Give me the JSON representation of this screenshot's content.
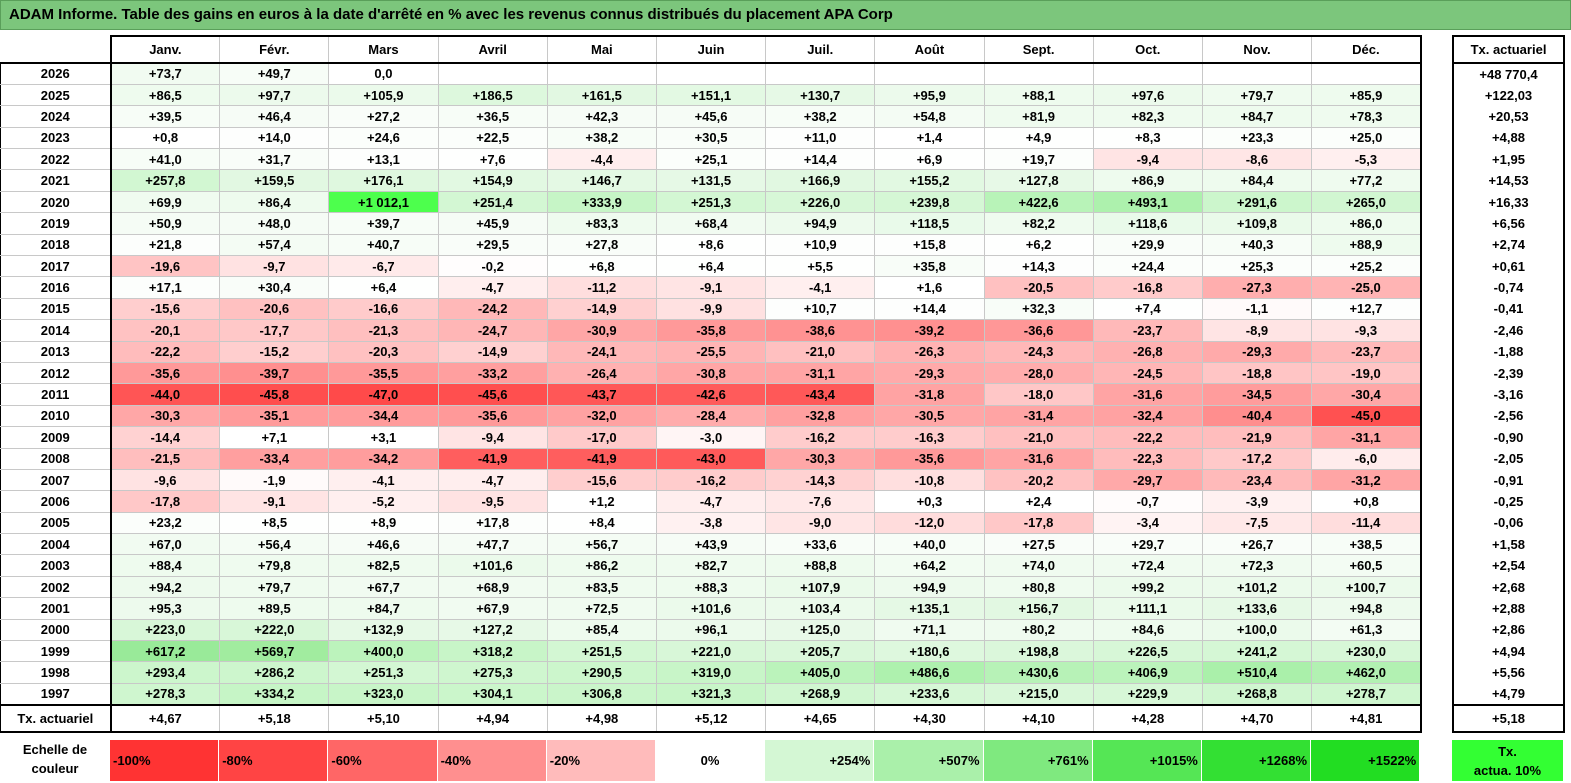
{
  "title": "ADAM Informe. Table des gains en euros à la date d'arrêté en % avec les revenus connus distribués du placement APA Corp",
  "months": [
    "Janv.",
    "Févr.",
    "Mars",
    "Avril",
    "Mai",
    "Juin",
    "Juil.",
    "Août",
    "Sept.",
    "Oct.",
    "Nov.",
    "Déc."
  ],
  "tx_header": "Tx. actuariel",
  "rows": [
    {
      "year": "2026",
      "values": [
        "+73,7",
        "+49,7",
        "0,0",
        "",
        "",
        "",
        "",
        "",
        "",
        "",
        "",
        ""
      ],
      "bg": [
        "#f1fbf1",
        "#f7fdf7",
        "#ffffff",
        "",
        "",
        "",
        "",
        "",
        "",
        "",
        "",
        ""
      ],
      "tx": "+48 770,4"
    },
    {
      "year": "2025",
      "values": [
        "+86,5",
        "+97,7",
        "+105,9",
        "+186,5",
        "+161,5",
        "+151,1",
        "+130,7",
        "+95,9",
        "+88,1",
        "+97,6",
        "+79,7",
        "+85,9"
      ],
      "bg": [
        "#eefbee",
        "#ecfaec",
        "#ebfaeb",
        "#ddf8dd",
        "#e2f8e2",
        "#e3f9e3",
        "#e6f9e6",
        "#ecfaec",
        "#eefbee",
        "#ecfaec",
        "#effbef",
        "#eefbee"
      ],
      "tx": "+122,03"
    },
    {
      "year": "2024",
      "values": [
        "+39,5",
        "+46,4",
        "+27,2",
        "+36,5",
        "+42,3",
        "+45,6",
        "+38,2",
        "+54,8",
        "+81,9",
        "+82,3",
        "+84,7",
        "+78,3"
      ],
      "bg": [
        "#f7fdf7",
        "#f6fcf6",
        "#f9fdf9",
        "#f7fdf7",
        "#f6fcf6",
        "#f6fcf6",
        "#f7fdf7",
        "#f4fcf4",
        "#effbef",
        "#effbef",
        "#eefbee",
        "#effbef"
      ],
      "tx": "+20,53"
    },
    {
      "year": "2023",
      "values": [
        "+0,8",
        "+14,0",
        "+24,6",
        "+22,5",
        "+38,2",
        "+30,5",
        "+11,0",
        "+1,4",
        "+4,9",
        "+8,3",
        "+23,3",
        "+25,0"
      ],
      "bg": [
        "#ffffff",
        "#fdfefd",
        "#fbfefb",
        "#fbfefb",
        "#f7fdf7",
        "#f9fdf9",
        "#fdfefd",
        "#ffffff",
        "#fefffe",
        "#fefffe",
        "#fbfefb",
        "#fbfefb"
      ],
      "tx": "+4,88"
    },
    {
      "year": "2022",
      "values": [
        "+41,0",
        "+31,7",
        "+13,1",
        "+7,6",
        "-4,4",
        "+25,1",
        "+14,4",
        "+6,9",
        "+19,7",
        "-9,4",
        "-8,6",
        "-5,3"
      ],
      "bg": [
        "#f7fdf7",
        "#f9fdf9",
        "#fdfefd",
        "#fefffe",
        "#ffeeee",
        "#fbfefb",
        "#fdfefd",
        "#fefffe",
        "#fcfefc",
        "#ffe4e4",
        "#ffe6e6",
        "#ffefef"
      ],
      "tx": "+1,95"
    },
    {
      "year": "2021",
      "values": [
        "+257,8",
        "+159,5",
        "+176,1",
        "+154,9",
        "+146,7",
        "+131,5",
        "+166,9",
        "+155,2",
        "+127,8",
        "+86,9",
        "+84,4",
        "+77,2"
      ],
      "bg": [
        "#d2f7d2",
        "#e2f8e2",
        "#dff8df",
        "#e2f9e2",
        "#e4f9e4",
        "#e6f9e6",
        "#e1f8e1",
        "#e2f9e2",
        "#e7f9e7",
        "#eefbee",
        "#eefbee",
        "#effbef"
      ],
      "tx": "+14,53"
    },
    {
      "year": "2020",
      "values": [
        "+69,9",
        "+86,4",
        "+1 012,1",
        "+251,4",
        "+333,9",
        "+251,3",
        "+226,0",
        "+239,8",
        "+422,6",
        "+493,1",
        "+291,6",
        "+265,0"
      ],
      "bg": [
        "#f0fbf0",
        "#eefbee",
        "#4dff4d",
        "#d3f7d3",
        "#c6f5c6",
        "#d3f7d3",
        "#d7f7d7",
        "#d5f7d5",
        "#b8f3b8",
        "#adf1ad",
        "#ccf6cc",
        "#d1f6d1"
      ],
      "tx": "+16,33"
    },
    {
      "year": "2019",
      "values": [
        "+50,9",
        "+48,0",
        "+39,7",
        "+45,9",
        "+83,3",
        "+68,4",
        "+94,9",
        "+118,5",
        "+82,2",
        "+118,6",
        "+109,8",
        "+86,0"
      ],
      "bg": [
        "#f5fcf5",
        "#f5fcf5",
        "#f7fdf7",
        "#f6fcf6",
        "#effbef",
        "#f1fbf1",
        "#edfaed",
        "#e9faea",
        "#effbef",
        "#e9faea",
        "#eafaea",
        "#eefbee"
      ],
      "tx": "+6,56"
    },
    {
      "year": "2018",
      "values": [
        "+21,8",
        "+57,4",
        "+40,7",
        "+29,5",
        "+27,8",
        "+8,6",
        "+10,9",
        "+15,8",
        "+6,2",
        "+29,9",
        "+40,3",
        "+88,9"
      ],
      "bg": [
        "#fcfefc",
        "#f4fcf4",
        "#f7fdf7",
        "#f9fdf9",
        "#f9fdf9",
        "#fefffe",
        "#fdfefd",
        "#fdfefd",
        "#fefffe",
        "#f9fdf9",
        "#f7fdf7",
        "#eefbee"
      ],
      "tx": "+2,74"
    },
    {
      "year": "2017",
      "values": [
        "-19,6",
        "-9,7",
        "-6,7",
        "-0,2",
        "+6,8",
        "+6,4",
        "+5,5",
        "+35,8",
        "+14,3",
        "+24,4",
        "+25,3",
        "+25,2"
      ],
      "bg": [
        "#ffc4c4",
        "#ffe2e2",
        "#ffeaea",
        "#fffdfd",
        "#fefffe",
        "#fefffe",
        "#fefffe",
        "#f8fdf8",
        "#fdfefd",
        "#fbfefb",
        "#fbfefb",
        "#fbfefb"
      ],
      "tx": "+0,61"
    },
    {
      "year": "2016",
      "values": [
        "+17,1",
        "+30,4",
        "+6,4",
        "-4,7",
        "-11,2",
        "-9,1",
        "-4,1",
        "+1,6",
        "-20,5",
        "-16,8",
        "-27,3",
        "-25,0"
      ],
      "bg": [
        "#fcfefc",
        "#f9fdf9",
        "#fefffe",
        "#ffeeee",
        "#ffdede",
        "#ffe4e4",
        "#ffefef",
        "#ffffff",
        "#ffc1c1",
        "#ffcbcb",
        "#ffaeae",
        "#ffb4b4"
      ],
      "tx": "-0,74"
    },
    {
      "year": "2015",
      "values": [
        "-15,6",
        "-20,6",
        "-16,6",
        "-24,2",
        "-14,9",
        "-9,9",
        "+10,7",
        "+14,4",
        "+32,3",
        "+7,4",
        "-1,1",
        "+12,7"
      ],
      "bg": [
        "#ffcece",
        "#ffc1c1",
        "#ffcbcb",
        "#ffb8b8",
        "#ffd0d0",
        "#ffe1e1",
        "#fdfefd",
        "#fdfefd",
        "#f8fdf8",
        "#fefffe",
        "#fffafa",
        "#fdfefd"
      ],
      "tx": "-0,41"
    },
    {
      "year": "2014",
      "values": [
        "-20,1",
        "-17,7",
        "-21,3",
        "-24,7",
        "-30,9",
        "-35,8",
        "-38,6",
        "-39,2",
        "-36,6",
        "-23,7",
        "-8,9",
        "-9,3"
      ],
      "bg": [
        "#ffc2c2",
        "#ffc8c8",
        "#ffbfbf",
        "#ffb6b6",
        "#ffa6a6",
        "#ff9999",
        "#ff9292",
        "#ff9090",
        "#ff9797",
        "#ffb9b9",
        "#ffe4e4",
        "#ffe3e3"
      ],
      "tx": "-2,46"
    },
    {
      "year": "2013",
      "values": [
        "-22,2",
        "-15,2",
        "-20,3",
        "-14,9",
        "-24,1",
        "-25,5",
        "-21,0",
        "-26,3",
        "-24,3",
        "-26,8",
        "-29,3",
        "-23,7"
      ],
      "bg": [
        "#ffbcbc",
        "#ffcece",
        "#ffc1c1",
        "#ffd0d0",
        "#ffb8b8",
        "#ffb4b4",
        "#ffc0c0",
        "#ffb2b2",
        "#ffb8b8",
        "#ffb1b1",
        "#ffaaaa",
        "#ffb9b9"
      ],
      "tx": "-1,88"
    },
    {
      "year": "2012",
      "values": [
        "-35,6",
        "-39,7",
        "-35,5",
        "-33,2",
        "-26,4",
        "-30,8",
        "-31,1",
        "-29,3",
        "-28,0",
        "-24,5",
        "-18,8",
        "-19,0"
      ],
      "bg": [
        "#ff9999",
        "#ff8f8f",
        "#ff9999",
        "#ff9f9f",
        "#ffb1b1",
        "#ffa6a6",
        "#ffa5a5",
        "#ffaaaa",
        "#ffadad",
        "#ffb6b6",
        "#ffc5c5",
        "#ffc5c5"
      ],
      "tx": "-2,39"
    },
    {
      "year": "2011",
      "values": [
        "-44,0",
        "-45,8",
        "-47,0",
        "-45,6",
        "-43,7",
        "-42,6",
        "-43,4",
        "-31,8",
        "-18,0",
        "-31,6",
        "-34,5",
        "-30,4"
      ],
      "bg": [
        "#ff5555",
        "#ff4e4e",
        "#ff4a4a",
        "#ff4f4f",
        "#ff5757",
        "#ff5b5b",
        "#ff5858",
        "#ffa3a3",
        "#ffc7c7",
        "#ffa4a4",
        "#ff9c9c",
        "#ffa7a7"
      ],
      "tx": "-3,16"
    },
    {
      "year": "2010",
      "values": [
        "-30,3",
        "-35,1",
        "-34,4",
        "-35,6",
        "-32,0",
        "-28,4",
        "-32,8",
        "-30,5",
        "-31,4",
        "-32,4",
        "-40,4",
        "-45,0"
      ],
      "bg": [
        "#ffa7a7",
        "#ff9b9b",
        "#ff9c9c",
        "#ff9999",
        "#ffa2a2",
        "#ffacac",
        "#ffa0a0",
        "#ffa7a7",
        "#ffa4a4",
        "#ffa2a2",
        "#ff8e8e",
        "#ff5151"
      ],
      "tx": "-2,56"
    },
    {
      "year": "2009",
      "values": [
        "-14,4",
        "+7,1",
        "+3,1",
        "-9,4",
        "-17,0",
        "-3,0",
        "-16,2",
        "-16,3",
        "-21,0",
        "-22,2",
        "-21,9",
        "-31,1"
      ],
      "bg": [
        "#ffd2d2",
        "#ffffff",
        "#ffffff",
        "#ffe4e4",
        "#ffcaca",
        "#fff5f5",
        "#ffcccc",
        "#ffcccc",
        "#ffc0c0",
        "#ffbcbc",
        "#ffbdbd",
        "#ffa5a5"
      ],
      "tx": "-0,90"
    },
    {
      "year": "2008",
      "values": [
        "-21,5",
        "-33,4",
        "-34,2",
        "-41,9",
        "-41,9",
        "-43,0",
        "-30,3",
        "-35,6",
        "-31,6",
        "-22,3",
        "-17,2",
        "-6,0"
      ],
      "bg": [
        "#ffbebe",
        "#ff9f9f",
        "#ff9d9d",
        "#ff5e5e",
        "#ff5e5e",
        "#ff5a5a",
        "#ffa7a7",
        "#ff9999",
        "#ffa4a4",
        "#ffbcbc",
        "#ffc9c9",
        "#ffecec"
      ],
      "tx": "-2,05"
    },
    {
      "year": "2007",
      "values": [
        "-9,6",
        "-1,9",
        "-4,1",
        "-4,7",
        "-15,6",
        "-16,2",
        "-14,3",
        "-10,8",
        "-20,2",
        "-29,7",
        "-23,4",
        "-31,2"
      ],
      "bg": [
        "#ffe3e3",
        "#fffafa",
        "#ffefef",
        "#ffeeee",
        "#ffcece",
        "#ffcccc",
        "#ffd2d2",
        "#ffdfdf",
        "#ffc2c2",
        "#ffa9a9",
        "#ffbaba",
        "#ffa5a5"
      ],
      "tx": "-0,91"
    },
    {
      "year": "2006",
      "values": [
        "-17,8",
        "-9,1",
        "-5,2",
        "-9,5",
        "+1,2",
        "-4,7",
        "-7,6",
        "+0,3",
        "+2,4",
        "-0,7",
        "-3,9",
        "+0,8"
      ],
      "bg": [
        "#ffc8c8",
        "#ffe4e4",
        "#ffefef",
        "#ffe3e3",
        "#ffffff",
        "#ffeeee",
        "#ffe8e8",
        "#ffffff",
        "#ffffff",
        "#fffcfc",
        "#fff1f1",
        "#ffffff"
      ],
      "tx": "-0,25"
    },
    {
      "year": "2005",
      "values": [
        "+23,2",
        "+8,5",
        "+8,9",
        "+17,8",
        "+8,4",
        "-3,8",
        "-9,0",
        "-12,0",
        "-17,8",
        "-3,4",
        "-7,5",
        "-11,4"
      ],
      "bg": [
        "#fbfefb",
        "#fefffe",
        "#fefffe",
        "#fcfefc",
        "#fefffe",
        "#fff1f1",
        "#ffe5e5",
        "#ffdcdc",
        "#ffc8c8",
        "#fff3f3",
        "#ffe8e8",
        "#ffdddd"
      ],
      "tx": "-0,06"
    },
    {
      "year": "2004",
      "values": [
        "+67,0",
        "+56,4",
        "+46,6",
        "+47,7",
        "+56,7",
        "+43,9",
        "+33,6",
        "+40,0",
        "+27,5",
        "+29,7",
        "+26,7",
        "+38,5"
      ],
      "bg": [
        "#f1fbf1",
        "#f4fcf4",
        "#f6fcf6",
        "#f5fcf5",
        "#f4fcf4",
        "#f6fcf6",
        "#f8fdf8",
        "#f7fdf7",
        "#f9fdf9",
        "#f9fdf9",
        "#f9fdf9",
        "#f7fdf7"
      ],
      "tx": "+1,58"
    },
    {
      "year": "2003",
      "values": [
        "+88,4",
        "+79,8",
        "+82,5",
        "+101,6",
        "+86,2",
        "+82,7",
        "+88,8",
        "+64,2",
        "+74,0",
        "+72,4",
        "+72,3",
        "+60,5"
      ],
      "bg": [
        "#eefbee",
        "#effbef",
        "#effbef",
        "#ebfaeb",
        "#eefbee",
        "#effbef",
        "#eefbee",
        "#f2fcf2",
        "#f0fbf0",
        "#f0fbf0",
        "#f0fbf0",
        "#f3fcf3"
      ],
      "tx": "+2,54"
    },
    {
      "year": "2002",
      "values": [
        "+94,2",
        "+79,7",
        "+67,7",
        "+68,9",
        "+83,5",
        "+88,3",
        "+107,9",
        "+94,9",
        "+80,8",
        "+99,2",
        "+101,2",
        "+100,7"
      ],
      "bg": [
        "#edfaed",
        "#effbef",
        "#f1fbf1",
        "#f1fbf1",
        "#effbef",
        "#eefbee",
        "#eafaea",
        "#edfaed",
        "#effbef",
        "#ebfaeb",
        "#ebfaeb",
        "#ebfaeb"
      ],
      "tx": "+2,68"
    },
    {
      "year": "2001",
      "values": [
        "+95,3",
        "+89,5",
        "+84,7",
        "+67,9",
        "+72,5",
        "+101,6",
        "+103,4",
        "+135,1",
        "+156,7",
        "+111,1",
        "+133,6",
        "+94,8"
      ],
      "bg": [
        "#edfaed",
        "#eefbee",
        "#eefbee",
        "#f1fbf1",
        "#f0fbf0",
        "#ebfaeb",
        "#ebfaeb",
        "#e5f9e5",
        "#e2f8e2",
        "#eafaea",
        "#e6f9e6",
        "#edfaed"
      ],
      "tx": "+2,88"
    },
    {
      "year": "2000",
      "values": [
        "+223,0",
        "+222,0",
        "+132,9",
        "+127,2",
        "+85,4",
        "+96,1",
        "+125,0",
        "+71,1",
        "+80,2",
        "+84,6",
        "+100,0",
        "+61,3"
      ],
      "bg": [
        "#d8f7d8",
        "#d8f7d8",
        "#e6f9e6",
        "#e7f9e7",
        "#eefbee",
        "#ecfaec",
        "#e8f9e8",
        "#f0fbf0",
        "#effbef",
        "#eefbee",
        "#ebfaeb",
        "#f3fcf3"
      ],
      "tx": "+2,86"
    },
    {
      "year": "1999",
      "values": [
        "+617,2",
        "+569,7",
        "+400,0",
        "+318,2",
        "+251,5",
        "+221,0",
        "+205,7",
        "+180,6",
        "+198,8",
        "+226,5",
        "+241,2",
        "+230,0"
      ],
      "bg": [
        "#99ea99",
        "#a1ec9f",
        "#bcf3bc",
        "#c8f5c8",
        "#d3f7d3",
        "#d8f7d8",
        "#daf7da",
        "#def8de",
        "#dbf7db",
        "#d7f7d7",
        "#d5f7d5",
        "#d7f7d7"
      ],
      "tx": "+4,94"
    },
    {
      "year": "1998",
      "values": [
        "+293,4",
        "+286,2",
        "+251,3",
        "+275,3",
        "+290,5",
        "+319,0",
        "+405,0",
        "+486,6",
        "+430,6",
        "+406,9",
        "+510,4",
        "+462,0"
      ],
      "bg": [
        "#ccf6cc",
        "#cdf6cd",
        "#d3f7d3",
        "#cff6cf",
        "#ccf6cc",
        "#c8f5c8",
        "#bbf3bb",
        "#aef1ae",
        "#b7f2b7",
        "#bbf3bb",
        "#aaf0aa",
        "#b2f1b2"
      ],
      "tx": "+5,56"
    },
    {
      "year": "1997",
      "values": [
        "+278,3",
        "+334,2",
        "+323,0",
        "+304,1",
        "+306,8",
        "+321,3",
        "+268,9",
        "+233,6",
        "+215,0",
        "+229,9",
        "+268,8",
        "+278,7"
      ],
      "bg": [
        "#cff6cf",
        "#c6f5c6",
        "#c8f5c8",
        "#cbf6cb",
        "#caf5ca",
        "#c8f5c8",
        "#d0f6d0",
        "#d6f7d6",
        "#d9f7d9",
        "#d7f7d7",
        "#d0f6d0",
        "#cff6cf"
      ],
      "tx": "+4,79"
    }
  ],
  "footer": {
    "label": "Tx. actuariel",
    "values": [
      "+4,67",
      "+5,18",
      "+5,10",
      "+4,94",
      "+4,98",
      "+5,12",
      "+4,65",
      "+4,30",
      "+4,10",
      "+4,28",
      "+4,70",
      "+4,81"
    ],
    "tx": "+5,18"
  },
  "scale": {
    "label_line1": "Echelle de",
    "label_line2": "couleur",
    "items": [
      {
        "text": "-100%",
        "color": "#ff3333",
        "kind": "neg"
      },
      {
        "text": "-80%",
        "color": "#ff4444",
        "kind": "neg"
      },
      {
        "text": "-60%",
        "color": "#ff6666",
        "kind": "neg"
      },
      {
        "text": "-40%",
        "color": "#ff8f8f",
        "kind": "neg"
      },
      {
        "text": "-20%",
        "color": "#ffbbbb",
        "kind": "neg"
      },
      {
        "text": "0%",
        "color": "#ffffff",
        "kind": "zero"
      },
      {
        "text": "+254%",
        "color": "#d4f7d4",
        "kind": "pos"
      },
      {
        "text": "+507%",
        "color": "#aaf0aa",
        "kind": "pos"
      },
      {
        "text": "+761%",
        "color": "#7fe97f",
        "kind": "pos"
      },
      {
        "text": "+1015%",
        "color": "#55e655",
        "kind": "pos"
      },
      {
        "text": "+1268%",
        "color": "#33e033",
        "kind": "pos"
      },
      {
        "text": "+1522%",
        "color": "#22dd22",
        "kind": "pos"
      }
    ],
    "tx_legend_line1": "Tx.",
    "tx_legend_line2": "actua. 10%",
    "tx_legend_color": "#33ff33"
  }
}
